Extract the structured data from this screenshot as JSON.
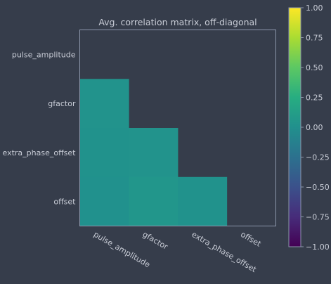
{
  "chart_data": {
    "type": "heatmap",
    "title": "Avg. correlation matrix, off-diagonal",
    "xlabel": "",
    "ylabel": "",
    "x_categories": [
      "pulse_amplitude",
      "gfactor",
      "extra_phase_offset",
      "offset"
    ],
    "y_categories": [
      "pulse_amplitude",
      "gfactor",
      "extra_phase_offset",
      "offset"
    ],
    "values": [
      [
        null,
        null,
        null,
        null
      ],
      [
        0.03,
        null,
        null,
        null
      ],
      [
        0.02,
        0.03,
        null,
        null
      ],
      [
        0.01,
        0.05,
        0.02,
        null
      ]
    ],
    "colormap": "viridis",
    "vmin": -1.0,
    "vmax": 1.0,
    "colorbar_ticks": [
      "1.00",
      "0.75",
      "0.50",
      "0.25",
      "0.00",
      "−0.25",
      "−0.50",
      "−0.75",
      "−1.00"
    ],
    "colorbar_tick_values": [
      1.0,
      0.75,
      0.5,
      0.25,
      0.0,
      -0.25,
      -0.5,
      -0.75,
      -1.0
    ],
    "grid": false,
    "colors": {
      "background": "#363d4b",
      "text": "#c8ccd6",
      "axis_frame": "#8c96ab"
    }
  }
}
